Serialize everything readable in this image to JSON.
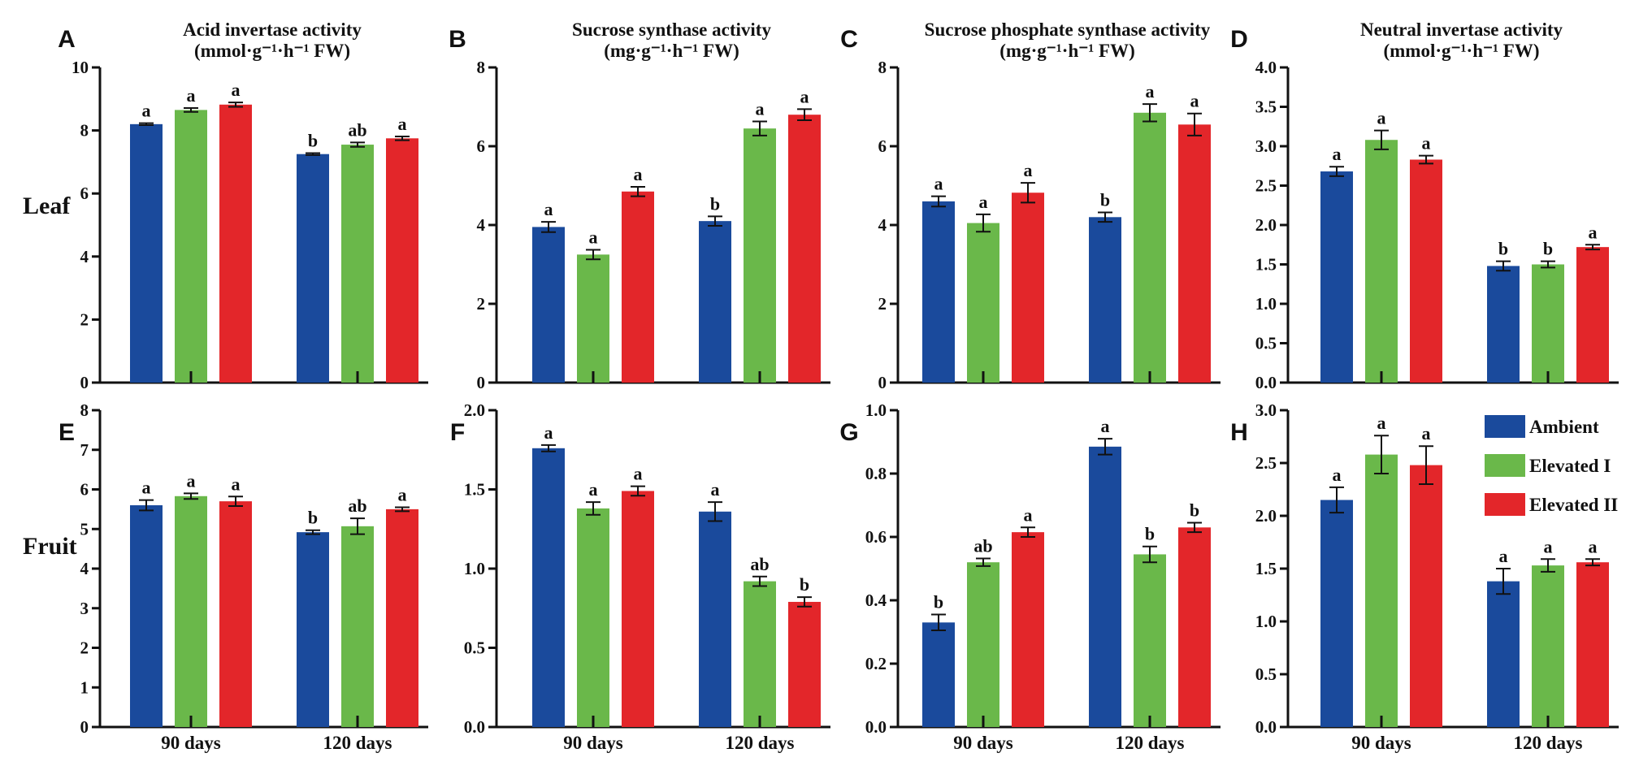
{
  "colors": {
    "Ambient": "#1a4a9c",
    "Elevated I": "#6ab84a",
    "Elevated II": "#e3262a"
  },
  "row_labels": [
    "Leaf",
    "Fruit"
  ],
  "legend": [
    "Ambient",
    "Elevated I",
    "Elevated II"
  ],
  "chart_data": [
    {
      "panel": "A",
      "type": "bar",
      "title": [
        "Acid invertase activity",
        "(mmol·g⁻¹·h⁻¹ FW)"
      ],
      "categories": [
        "90 days",
        "120 days"
      ],
      "ylim": [
        0,
        10
      ],
      "yticks": [
        "0",
        "2",
        "4",
        "6",
        "8",
        "10"
      ],
      "series": [
        {
          "name": "Ambient",
          "values": [
            8.2,
            7.25
          ],
          "errors": [
            0.03,
            0.03
          ],
          "letters": [
            "a",
            "b"
          ]
        },
        {
          "name": "Elevated I",
          "values": [
            8.65,
            7.55
          ],
          "errors": [
            0.06,
            0.07
          ],
          "letters": [
            "a",
            "ab"
          ]
        },
        {
          "name": "Elevated II",
          "values": [
            8.82,
            7.75
          ],
          "errors": [
            0.07,
            0.06
          ],
          "letters": [
            "a",
            "a"
          ]
        }
      ]
    },
    {
      "panel": "B",
      "type": "bar",
      "title": [
        "Sucrose synthase activity",
        "(mg·g⁻¹·h⁻¹ FW)"
      ],
      "categories": [
        "90 days",
        "120 days"
      ],
      "ylim": [
        0,
        8
      ],
      "yticks": [
        "0",
        "2",
        "4",
        "6",
        "8"
      ],
      "series": [
        {
          "name": "Ambient",
          "values": [
            3.95,
            4.1
          ],
          "errors": [
            0.13,
            0.12
          ],
          "letters": [
            "a",
            "b"
          ]
        },
        {
          "name": "Elevated I",
          "values": [
            3.25,
            6.45
          ],
          "errors": [
            0.12,
            0.18
          ],
          "letters": [
            "a",
            "a"
          ]
        },
        {
          "name": "Elevated II",
          "values": [
            4.85,
            6.8
          ],
          "errors": [
            0.12,
            0.14
          ],
          "letters": [
            "a",
            "a"
          ]
        }
      ]
    },
    {
      "panel": "C",
      "type": "bar",
      "title": [
        "Sucrose phosphate synthase activity",
        "(mg·g⁻¹·h⁻¹ FW)"
      ],
      "categories": [
        "90 days",
        "120 days"
      ],
      "ylim": [
        0,
        8
      ],
      "yticks": [
        "0",
        "2",
        "4",
        "6",
        "8"
      ],
      "series": [
        {
          "name": "Ambient",
          "values": [
            4.6,
            4.2
          ],
          "errors": [
            0.13,
            0.12
          ],
          "letters": [
            "a",
            "b"
          ]
        },
        {
          "name": "Elevated I",
          "values": [
            4.05,
            6.85
          ],
          "errors": [
            0.22,
            0.22
          ],
          "letters": [
            "a",
            "a"
          ]
        },
        {
          "name": "Elevated II",
          "values": [
            4.82,
            6.55
          ],
          "errors": [
            0.25,
            0.28
          ],
          "letters": [
            "a",
            "a"
          ]
        }
      ]
    },
    {
      "panel": "D",
      "type": "bar",
      "title": [
        "Neutral invertase activity",
        "(mmol·g⁻¹·h⁻¹ FW)"
      ],
      "categories": [
        "90 days",
        "120 days"
      ],
      "ylim": [
        0,
        4
      ],
      "yticks": [
        "0.0",
        "0.5",
        "1.0",
        "1.5",
        "2.0",
        "2.5",
        "3.0",
        "3.5",
        "4.0"
      ],
      "series": [
        {
          "name": "Ambient",
          "values": [
            2.68,
            1.48
          ],
          "errors": [
            0.06,
            0.06
          ],
          "letters": [
            "a",
            "b"
          ]
        },
        {
          "name": "Elevated I",
          "values": [
            3.08,
            1.5
          ],
          "errors": [
            0.12,
            0.04
          ],
          "letters": [
            "a",
            "b"
          ]
        },
        {
          "name": "Elevated II",
          "values": [
            2.83,
            1.72
          ],
          "errors": [
            0.05,
            0.03
          ],
          "letters": [
            "a",
            "a"
          ]
        }
      ]
    },
    {
      "panel": "E",
      "type": "bar",
      "title": [],
      "categories": [
        "90 days",
        "120 days"
      ],
      "ylim": [
        0,
        8
      ],
      "yticks": [
        "0",
        "1",
        "2",
        "3",
        "4",
        "5",
        "6",
        "7",
        "8"
      ],
      "series": [
        {
          "name": "Ambient",
          "values": [
            5.6,
            4.92
          ],
          "errors": [
            0.13,
            0.05
          ],
          "letters": [
            "a",
            "b"
          ]
        },
        {
          "name": "Elevated I",
          "values": [
            5.83,
            5.07
          ],
          "errors": [
            0.07,
            0.2
          ],
          "letters": [
            "a",
            "ab"
          ]
        },
        {
          "name": "Elevated II",
          "values": [
            5.7,
            5.5
          ],
          "errors": [
            0.12,
            0.05
          ],
          "letters": [
            "a",
            "a"
          ]
        }
      ]
    },
    {
      "panel": "F",
      "type": "bar",
      "title": [],
      "categories": [
        "90 days",
        "120 days"
      ],
      "ylim": [
        0,
        2
      ],
      "yticks": [
        "0.0",
        "0.5",
        "1.0",
        "1.5",
        "2.0"
      ],
      "series": [
        {
          "name": "Ambient",
          "values": [
            1.76,
            1.36
          ],
          "errors": [
            0.02,
            0.06
          ],
          "letters": [
            "a",
            "a"
          ]
        },
        {
          "name": "Elevated I",
          "values": [
            1.38,
            0.92
          ],
          "errors": [
            0.04,
            0.03
          ],
          "letters": [
            "a",
            "ab"
          ]
        },
        {
          "name": "Elevated II",
          "values": [
            1.49,
            0.79
          ],
          "errors": [
            0.03,
            0.03
          ],
          "letters": [
            "a",
            "b"
          ]
        }
      ]
    },
    {
      "panel": "G",
      "type": "bar",
      "title": [],
      "categories": [
        "90 days",
        "120 days"
      ],
      "ylim": [
        0,
        1
      ],
      "yticks": [
        "0.0",
        "0.2",
        "0.4",
        "0.6",
        "0.8",
        "1.0"
      ],
      "series": [
        {
          "name": "Ambient",
          "values": [
            0.33,
            0.885
          ],
          "errors": [
            0.025,
            0.025
          ],
          "letters": [
            "b",
            "a"
          ]
        },
        {
          "name": "Elevated I",
          "values": [
            0.52,
            0.545
          ],
          "errors": [
            0.012,
            0.025
          ],
          "letters": [
            "ab",
            "b"
          ]
        },
        {
          "name": "Elevated II",
          "values": [
            0.615,
            0.63
          ],
          "errors": [
            0.015,
            0.015
          ],
          "letters": [
            "a",
            "b"
          ]
        }
      ]
    },
    {
      "panel": "H",
      "type": "bar",
      "title": [],
      "categories": [
        "90 days",
        "120 days"
      ],
      "ylim": [
        0,
        3
      ],
      "yticks": [
        "0.0",
        "0.5",
        "1.0",
        "1.5",
        "2.0",
        "2.5",
        "3.0"
      ],
      "series": [
        {
          "name": "Ambient",
          "values": [
            2.15,
            1.38
          ],
          "errors": [
            0.12,
            0.12
          ],
          "letters": [
            "a",
            "a"
          ]
        },
        {
          "name": "Elevated I",
          "values": [
            2.58,
            1.53
          ],
          "errors": [
            0.18,
            0.06
          ],
          "letters": [
            "a",
            "a"
          ]
        },
        {
          "name": "Elevated II",
          "values": [
            2.48,
            1.56
          ],
          "errors": [
            0.18,
            0.03
          ],
          "letters": [
            "a",
            "a"
          ]
        }
      ]
    }
  ]
}
